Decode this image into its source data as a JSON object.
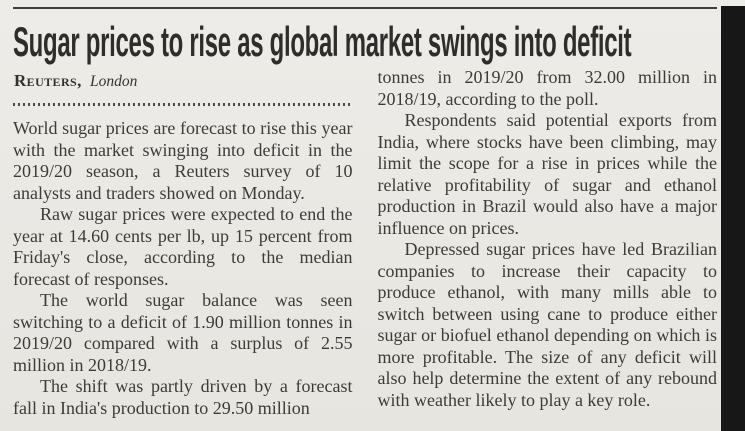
{
  "article": {
    "headline": "Sugar prices to rise as global market swings into deficit",
    "byline": {
      "source": "Reuters,",
      "location": "London"
    },
    "body": {
      "left": [
        "World sugar prices are forecast to rise this year with the market swinging into deficit in the 2019/20 season, a Reuters survey of 10 analysts and traders showed on Monday.",
        "Raw sugar prices were expected to end the year at 14.60 cents per lb, up 15 percent from Friday's close, according to the median forecast of responses.",
        "The world sugar balance was seen switching to a deficit of 1.90 million tonnes in 2019/20 compared with a surplus of 2.55 million in 2018/19.",
        "The shift was partly driven by a forecast fall in India's production to 29.50 million"
      ],
      "right": [
        "tonnes in 2019/20 from 32.00 million in 2018/19, according to the poll.",
        "Respondents said potential exports from India, where stocks have been climbing, may limit the scope for a rise in prices while the relative profitability of sugar and ethanol production in Brazil would also have a major influence on prices.",
        "Depressed sugar prices have led Brazilian companies to increase their capacity to produce ethanol, with many mills able to switch between using cane to produce either sugar or biofuel ethanol depending on which is more profitable. The size of any deficit will also help determine the extent of any rebound with weather likely to play a key role."
      ]
    },
    "colors": {
      "page_bg": "#eae8e3",
      "ink": "#3d3b38",
      "headline_ink": "#2e2d2c",
      "rule": "#3f3f3f",
      "edge_strip": "#171717"
    }
  }
}
